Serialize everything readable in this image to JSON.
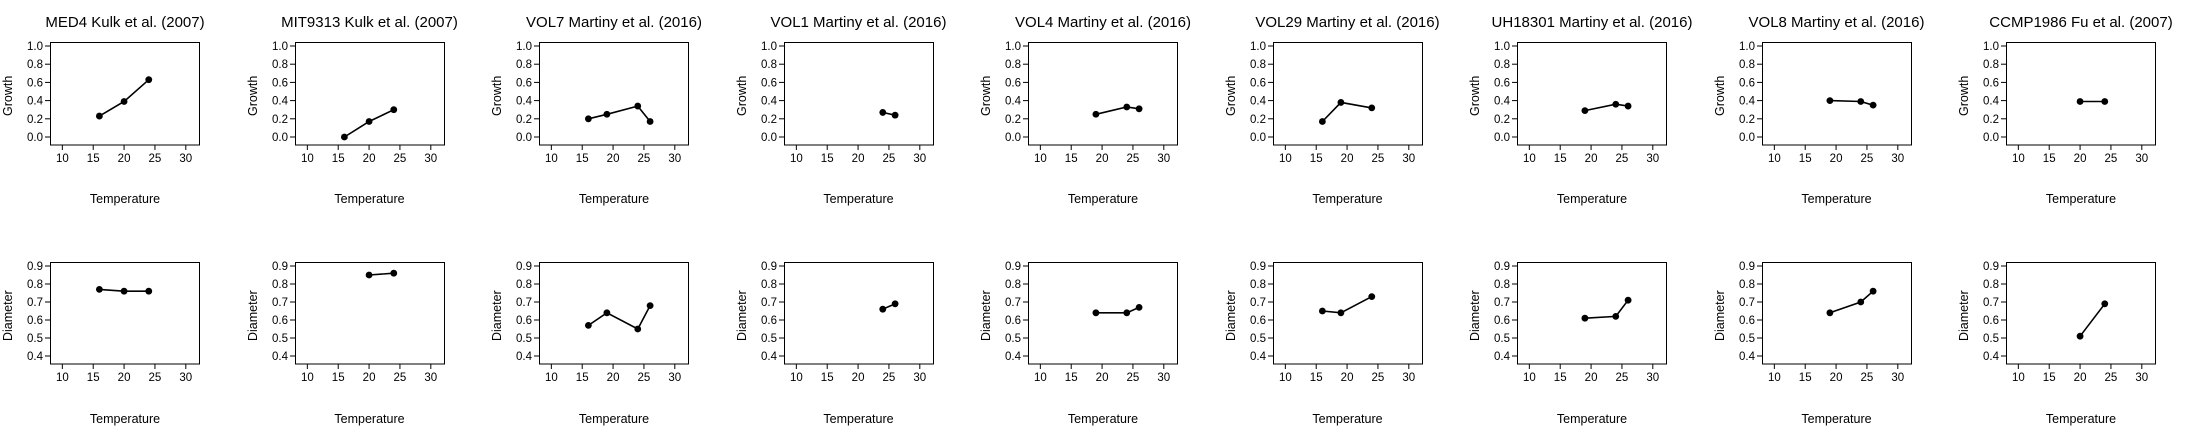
{
  "chart_data": [
    {
      "type": "line",
      "title": "MED4 Kulk et al. (2007)",
      "xlabel": "Temperature",
      "ylabel": "Growth",
      "xlim": [
        10,
        30
      ],
      "ylim": [
        0,
        1
      ],
      "x": [
        16,
        20,
        24
      ],
      "y": [
        0.23,
        0.39,
        0.63
      ]
    },
    {
      "type": "line",
      "title": "MIT9313 Kulk et al. (2007)",
      "xlabel": "Temperature",
      "ylabel": "Growth",
      "xlim": [
        10,
        30
      ],
      "ylim": [
        0,
        1
      ],
      "x": [
        16,
        20,
        24
      ],
      "y": [
        0.0,
        0.17,
        0.3
      ]
    },
    {
      "type": "line",
      "title": "VOL7 Martiny et al. (2016)",
      "xlabel": "Temperature",
      "ylabel": "Growth",
      "xlim": [
        10,
        30
      ],
      "ylim": [
        0,
        1
      ],
      "x": [
        16,
        19,
        24,
        26
      ],
      "y": [
        0.2,
        0.25,
        0.34,
        0.17
      ]
    },
    {
      "type": "line",
      "title": "VOL1 Martiny et al. (2016)",
      "xlabel": "Temperature",
      "ylabel": "Growth",
      "xlim": [
        10,
        30
      ],
      "ylim": [
        0,
        1
      ],
      "x": [
        24,
        26
      ],
      "y": [
        0.27,
        0.24
      ]
    },
    {
      "type": "line",
      "title": "VOL4 Martiny et al. (2016)",
      "xlabel": "Temperature",
      "ylabel": "Growth",
      "xlim": [
        10,
        30
      ],
      "ylim": [
        0,
        1
      ],
      "x": [
        19,
        24,
        26
      ],
      "y": [
        0.25,
        0.33,
        0.31
      ]
    },
    {
      "type": "line",
      "title": "VOL29 Martiny et al. (2016)",
      "xlabel": "Temperature",
      "ylabel": "Growth",
      "xlim": [
        10,
        30
      ],
      "ylim": [
        0,
        1
      ],
      "x": [
        16,
        19,
        24
      ],
      "y": [
        0.17,
        0.38,
        0.32
      ]
    },
    {
      "type": "line",
      "title": "UH18301 Martiny et al. (2016)",
      "xlabel": "Temperature",
      "ylabel": "Growth",
      "xlim": [
        10,
        30
      ],
      "ylim": [
        0,
        1
      ],
      "x": [
        19,
        24,
        26
      ],
      "y": [
        0.29,
        0.36,
        0.34
      ]
    },
    {
      "type": "line",
      "title": "VOL8 Martiny et al. (2016)",
      "xlabel": "Temperature",
      "ylabel": "Growth",
      "xlim": [
        10,
        30
      ],
      "ylim": [
        0,
        1
      ],
      "x": [
        19,
        24,
        26
      ],
      "y": [
        0.4,
        0.39,
        0.35
      ]
    },
    {
      "type": "line",
      "title": "CCMP1986 Fu et al. (2007)",
      "xlabel": "Temperature",
      "ylabel": "Growth",
      "xlim": [
        10,
        30
      ],
      "ylim": [
        0,
        1
      ],
      "x": [
        20,
        24
      ],
      "y": [
        0.39,
        0.39
      ]
    },
    {
      "type": "line",
      "xlabel": "Temperature",
      "ylabel": "Diameter",
      "xlim": [
        10,
        30
      ],
      "ylim": [
        0.4,
        0.9
      ],
      "x": [
        16,
        20,
        24
      ],
      "y": [
        0.77,
        0.76,
        0.76
      ]
    },
    {
      "type": "line",
      "xlabel": "Temperature",
      "ylabel": "Diameter",
      "xlim": [
        10,
        30
      ],
      "ylim": [
        0.4,
        0.9
      ],
      "x": [
        20,
        24
      ],
      "y": [
        0.85,
        0.86
      ]
    },
    {
      "type": "line",
      "xlabel": "Temperature",
      "ylabel": "Diameter",
      "xlim": [
        10,
        30
      ],
      "ylim": [
        0.4,
        0.9
      ],
      "x": [
        16,
        19,
        24,
        26
      ],
      "y": [
        0.57,
        0.64,
        0.55,
        0.68
      ]
    },
    {
      "type": "line",
      "xlabel": "Temperature",
      "ylabel": "Diameter",
      "xlim": [
        10,
        30
      ],
      "ylim": [
        0.4,
        0.9
      ],
      "x": [
        24,
        26
      ],
      "y": [
        0.66,
        0.69
      ]
    },
    {
      "type": "line",
      "xlabel": "Temperature",
      "ylabel": "Diameter",
      "xlim": [
        10,
        30
      ],
      "ylim": [
        0.4,
        0.9
      ],
      "x": [
        19,
        24,
        26
      ],
      "y": [
        0.64,
        0.64,
        0.67
      ]
    },
    {
      "type": "line",
      "xlabel": "Temperature",
      "ylabel": "Diameter",
      "xlim": [
        10,
        30
      ],
      "ylim": [
        0.4,
        0.9
      ],
      "x": [
        16,
        19,
        24
      ],
      "y": [
        0.65,
        0.64,
        0.73
      ]
    },
    {
      "type": "line",
      "xlabel": "Temperature",
      "ylabel": "Diameter",
      "xlim": [
        10,
        30
      ],
      "ylim": [
        0.4,
        0.9
      ],
      "x": [
        19,
        24,
        26
      ],
      "y": [
        0.61,
        0.62,
        0.71
      ]
    },
    {
      "type": "line",
      "xlabel": "Temperature",
      "ylabel": "Diameter",
      "xlim": [
        10,
        30
      ],
      "ylim": [
        0.4,
        0.9
      ],
      "x": [
        19,
        24,
        26
      ],
      "y": [
        0.64,
        0.7,
        0.76
      ]
    },
    {
      "type": "line",
      "xlabel": "Temperature",
      "ylabel": "Diameter",
      "xlim": [
        10,
        30
      ],
      "ylim": [
        0.4,
        0.9
      ],
      "x": [
        20,
        24
      ],
      "y": [
        0.51,
        0.69
      ]
    }
  ],
  "ticks": {
    "x": [
      "10",
      "15",
      "20",
      "25",
      "30"
    ],
    "growth": [
      "0.0",
      "0.2",
      "0.4",
      "0.6",
      "0.8",
      "1.0"
    ],
    "diameter": [
      "0.4",
      "0.5",
      "0.6",
      "0.7",
      "0.8",
      "0.9"
    ]
  }
}
